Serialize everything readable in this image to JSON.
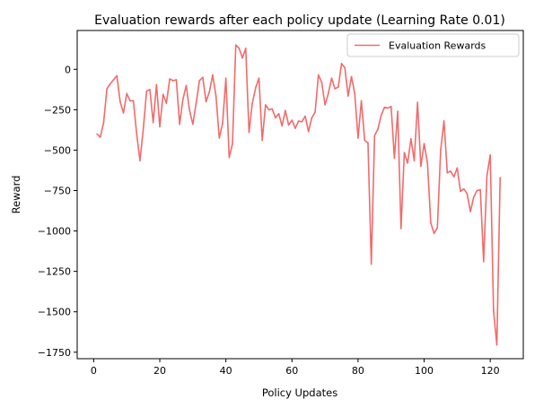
{
  "chart_data": {
    "type": "line",
    "title": "Evaluation rewards after each policy update (Learning Rate 0.01)",
    "xlabel": "Policy Updates",
    "ylabel": "Reward",
    "xlim": [
      -5,
      130
    ],
    "ylim": [
      -1790,
      240
    ],
    "xticks": [
      0,
      20,
      40,
      60,
      80,
      100,
      120
    ],
    "yticks": [
      -1750,
      -1500,
      -1250,
      -1000,
      -750,
      -500,
      -250,
      0
    ],
    "ytick_labels": [
      "−1750",
      "−1500",
      "−1250",
      "−1000",
      "−750",
      "−500",
      "−250",
      "0"
    ],
    "grid": false,
    "legend": "top-right",
    "series": [
      {
        "name": "Evaluation Rewards",
        "color": "#f16b6b",
        "x": [
          1,
          2,
          3,
          4,
          5,
          6,
          7,
          8,
          9,
          10,
          11,
          12,
          13,
          14,
          15,
          16,
          17,
          18,
          19,
          20,
          21,
          22,
          23,
          24,
          25,
          26,
          27,
          28,
          29,
          30,
          31,
          32,
          33,
          34,
          35,
          36,
          37,
          38,
          39,
          40,
          41,
          42,
          43,
          44,
          45,
          46,
          47,
          48,
          49,
          50,
          51,
          52,
          53,
          54,
          55,
          56,
          57,
          58,
          59,
          60,
          61,
          62,
          63,
          64,
          65,
          66,
          67,
          68,
          69,
          70,
          71,
          72,
          73,
          74,
          75,
          76,
          77,
          78,
          79,
          80,
          81,
          82,
          83,
          84,
          85,
          86,
          87,
          88,
          89,
          90,
          91,
          92,
          93,
          94,
          95,
          96,
          97,
          98,
          99,
          100,
          101,
          102,
          103,
          104,
          105,
          106,
          107,
          108,
          109,
          110,
          111,
          112,
          113,
          114,
          115,
          116,
          117,
          118,
          119,
          120,
          121,
          122,
          123
        ],
        "values": [
          -400,
          -420,
          -330,
          -120,
          -90,
          -65,
          -40,
          -200,
          -270,
          -150,
          -195,
          -195,
          -400,
          -565,
          -370,
          -135,
          -125,
          -330,
          -95,
          -355,
          -155,
          -210,
          -60,
          -70,
          -65,
          -340,
          -185,
          -100,
          -255,
          -340,
          -210,
          -70,
          -50,
          -200,
          -140,
          -35,
          -165,
          -425,
          -335,
          -55,
          -545,
          -460,
          150,
          130,
          70,
          130,
          -390,
          -210,
          -115,
          -55,
          -440,
          -220,
          -250,
          -245,
          -300,
          -275,
          -350,
          -255,
          -345,
          -315,
          -365,
          -320,
          -325,
          -290,
          -385,
          -300,
          -265,
          -35,
          -80,
          -220,
          -150,
          -55,
          -120,
          -110,
          35,
          10,
          -165,
          -45,
          -150,
          -425,
          -195,
          -440,
          -455,
          -1205,
          -410,
          -370,
          -285,
          -235,
          -240,
          -230,
          -550,
          -260,
          -985,
          -515,
          -580,
          -430,
          -565,
          -205,
          -600,
          -460,
          -580,
          -950,
          -1015,
          -980,
          -500,
          -320,
          -640,
          -630,
          -665,
          -610,
          -755,
          -740,
          -770,
          -880,
          -790,
          -750,
          -745,
          -1190,
          -660,
          -530,
          -1495,
          -1705,
          -670
        ]
      }
    ]
  }
}
